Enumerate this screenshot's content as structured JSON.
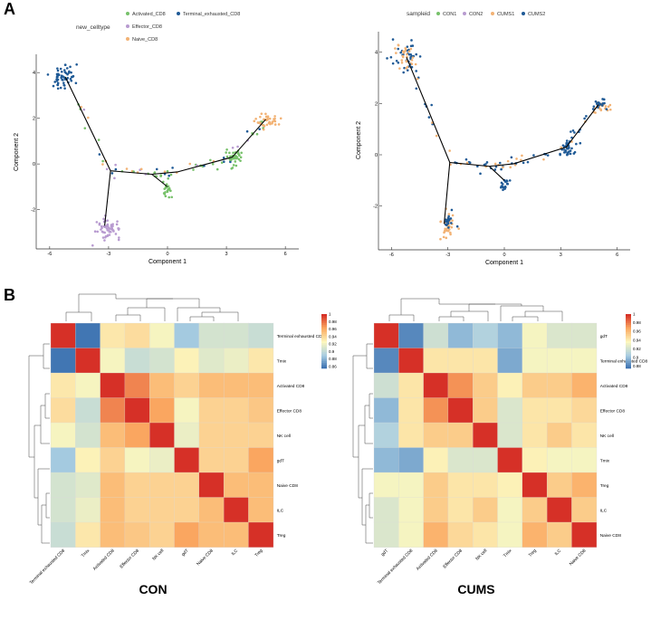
{
  "panelA": {
    "letter": "A",
    "left": {
      "legend_title": "new_celltype",
      "legend": [
        {
          "label": "Activated_CD8",
          "color": "#77c16a"
        },
        {
          "label": "Terminal_exhausted_CD8",
          "color": "#1f5a96"
        },
        {
          "label": "Effector_CD8",
          "color": "#b89bd0"
        },
        {
          "label": "Naive_CD8",
          "color": "#f2b274"
        }
      ],
      "xlabel": "Component 1",
      "ylabel": "Component 2",
      "xticks": [
        -6,
        -3,
        0,
        3,
        6
      ],
      "yticks": [
        -2,
        0,
        2,
        4
      ],
      "xlim": [
        -6.5,
        6.5
      ],
      "ylim": [
        -3.6,
        4.8
      ]
    },
    "right": {
      "legend_title": "sampleid",
      "legend": [
        {
          "label": "CON1",
          "color": "#77c16a"
        },
        {
          "label": "CON2",
          "color": "#b89bd0"
        },
        {
          "label": "CUMS1",
          "color": "#f2b274"
        },
        {
          "label": "CUMS2",
          "color": "#1f5a96"
        }
      ],
      "xlabel": "Component 1",
      "ylabel": "Component 2",
      "xticks": [
        -6,
        -3,
        0,
        3,
        6
      ],
      "yticks": [
        -2,
        0,
        2,
        4
      ],
      "xlim": [
        -6.5,
        6.5
      ],
      "ylim": [
        -3.6,
        4.8
      ]
    }
  },
  "panelB": {
    "letter": "B",
    "con": {
      "title": "CON",
      "labels": [
        "Terminal exhausted CD8",
        "Tmix",
        "Activated CD8",
        "Effector CD8",
        "NK cell",
        "gdT",
        "Naive CD8",
        "ILC",
        "Treg"
      ],
      "colorbar": {
        "ticks": [
          1,
          0.98,
          0.96,
          0.94,
          0.92,
          0.9,
          0.88,
          0.86
        ],
        "min": 0.855,
        "max": 1.0
      },
      "matrix": [
        [
          1.0,
          0.86,
          0.935,
          0.94,
          0.925,
          0.89,
          0.91,
          0.91,
          0.905
        ],
        [
          0.86,
          1.0,
          0.925,
          0.905,
          0.91,
          0.93,
          0.915,
          0.92,
          0.935
        ],
        [
          0.935,
          0.925,
          1.0,
          0.975,
          0.955,
          0.945,
          0.955,
          0.955,
          0.955
        ],
        [
          0.94,
          0.905,
          0.975,
          1.0,
          0.965,
          0.925,
          0.945,
          0.945,
          0.95
        ],
        [
          0.925,
          0.91,
          0.955,
          0.965,
          1.0,
          0.92,
          0.945,
          0.945,
          0.945
        ],
        [
          0.89,
          0.93,
          0.945,
          0.925,
          0.92,
          1.0,
          0.945,
          0.945,
          0.965
        ],
        [
          0.91,
          0.915,
          0.955,
          0.945,
          0.945,
          0.945,
          1.0,
          0.955,
          0.955
        ],
        [
          0.91,
          0.92,
          0.955,
          0.945,
          0.945,
          0.945,
          0.955,
          1.0,
          0.955
        ],
        [
          0.905,
          0.935,
          0.955,
          0.95,
          0.945,
          0.965,
          0.955,
          0.955,
          1.0
        ]
      ]
    },
    "cums": {
      "title": "CUMS",
      "labels": [
        "gdT",
        "Terminal exhausted CD8",
        "Activated CD8",
        "Effector CD8",
        "NK cell",
        "Tmix",
        "Treg",
        "ILC",
        "Naive CD8"
      ],
      "colorbar": {
        "ticks": [
          1,
          0.98,
          0.96,
          0.94,
          0.92,
          0.9,
          0.88
        ],
        "min": 0.875,
        "max": 1.0
      },
      "matrix": [
        [
          1.0,
          0.885,
          0.92,
          0.9,
          0.91,
          0.9,
          0.935,
          0.925,
          0.925
        ],
        [
          0.885,
          1.0,
          0.945,
          0.945,
          0.945,
          0.895,
          0.935,
          0.935,
          0.935
        ],
        [
          0.92,
          0.945,
          1.0,
          0.975,
          0.955,
          0.94,
          0.955,
          0.955,
          0.965
        ],
        [
          0.9,
          0.945,
          0.975,
          1.0,
          0.955,
          0.925,
          0.945,
          0.945,
          0.95
        ],
        [
          0.91,
          0.945,
          0.955,
          0.955,
          1.0,
          0.925,
          0.945,
          0.955,
          0.945
        ],
        [
          0.9,
          0.895,
          0.94,
          0.925,
          0.925,
          1.0,
          0.94,
          0.935,
          0.935
        ],
        [
          0.935,
          0.935,
          0.955,
          0.945,
          0.945,
          0.94,
          1.0,
          0.955,
          0.965
        ],
        [
          0.925,
          0.935,
          0.955,
          0.945,
          0.955,
          0.935,
          0.955,
          1.0,
          0.955
        ],
        [
          0.925,
          0.935,
          0.965,
          0.95,
          0.945,
          0.935,
          0.965,
          0.955,
          1.0
        ]
      ]
    }
  },
  "chart_data": [
    {
      "type": "scatter",
      "title": "",
      "xlabel": "Component 1",
      "ylabel": "Component 2",
      "xlim": [
        -6.5,
        6.5
      ],
      "ylim": [
        -3.6,
        4.8
      ],
      "legend_title": "new_celltype",
      "series": [
        {
          "name": "Terminal_exhausted_CD8",
          "center": [
            -5.3,
            3.8
          ],
          "spread": [
            0.35,
            0.3
          ],
          "n": 55,
          "color": "#1f5a96"
        },
        {
          "name": "Effector_CD8",
          "center": [
            -3.0,
            -2.8
          ],
          "spread": [
            0.3,
            0.22
          ],
          "n": 55,
          "color": "#b89bd0"
        },
        {
          "name": "Activated_CD8",
          "center": [
            0.0,
            -1.1
          ],
          "spread": [
            0.12,
            0.15
          ],
          "n": 20,
          "color": "#77c16a"
        },
        {
          "name": "Activated_CD8",
          "center": [
            3.4,
            0.25
          ],
          "spread": [
            0.2,
            0.2
          ],
          "n": 40,
          "color": "#77c16a"
        },
        {
          "name": "Naive_CD8",
          "center": [
            5.1,
            1.9
          ],
          "spread": [
            0.35,
            0.15
          ],
          "n": 40,
          "color": "#f2b274"
        }
      ],
      "trajectory": [
        [
          -5.2,
          3.8
        ],
        [
          -2.9,
          -0.3
        ],
        [
          -0.8,
          -0.45
        ],
        [
          0.5,
          -0.35
        ],
        [
          3.3,
          0.3
        ],
        [
          5.0,
          1.95
        ]
      ],
      "branches": [
        [
          [
            -2.9,
            -0.3
          ],
          [
            -3.2,
            -2.7
          ]
        ],
        [
          [
            -0.8,
            -0.45
          ],
          [
            0.0,
            -1.0
          ]
        ]
      ]
    },
    {
      "type": "scatter",
      "title": "",
      "xlabel": "Component 1",
      "ylabel": "Component 2",
      "xlim": [
        -6.5,
        6.5
      ],
      "ylim": [
        -3.6,
        4.8
      ],
      "legend_title": "sampleid",
      "series": [
        {
          "name": "CUMS2",
          "center": [
            -5.3,
            3.8
          ],
          "spread": [
            0.35,
            0.3
          ],
          "n": 35,
          "color": "#1f5a96"
        },
        {
          "name": "CUMS1",
          "center": [
            -5.3,
            3.8
          ],
          "spread": [
            0.35,
            0.35
          ],
          "n": 25,
          "color": "#f2b274"
        },
        {
          "name": "CUMS1",
          "center": [
            -3.0,
            -2.8
          ],
          "spread": [
            0.25,
            0.25
          ],
          "n": 30,
          "color": "#f2b274"
        },
        {
          "name": "CUMS2",
          "center": [
            -3.0,
            -2.7
          ],
          "spread": [
            0.2,
            0.2
          ],
          "n": 18,
          "color": "#1f5a96"
        },
        {
          "name": "CUMS2",
          "center": [
            0.0,
            -1.1
          ],
          "spread": [
            0.12,
            0.15
          ],
          "n": 20,
          "color": "#1f5a96"
        },
        {
          "name": "CUMS2",
          "center": [
            3.4,
            0.25
          ],
          "spread": [
            0.18,
            0.2
          ],
          "n": 35,
          "color": "#1f5a96"
        },
        {
          "name": "CUMS1",
          "center": [
            5.1,
            1.9
          ],
          "spread": [
            0.3,
            0.15
          ],
          "n": 22,
          "color": "#f2b274"
        },
        {
          "name": "CUMS2",
          "center": [
            5.1,
            1.9
          ],
          "spread": [
            0.3,
            0.15
          ],
          "n": 18,
          "color": "#1f5a96"
        }
      ],
      "trajectory": [
        [
          -5.2,
          3.8
        ],
        [
          -2.9,
          -0.3
        ],
        [
          -0.8,
          -0.45
        ],
        [
          0.5,
          -0.35
        ],
        [
          3.3,
          0.3
        ],
        [
          5.0,
          1.95
        ]
      ],
      "branches": [
        [
          [
            -2.9,
            -0.3
          ],
          [
            -3.2,
            -2.7
          ]
        ],
        [
          [
            -0.8,
            -0.45
          ],
          [
            0.0,
            -1.0
          ]
        ]
      ]
    },
    {
      "type": "heatmap",
      "title": "CON",
      "labels": [
        "Terminal exhausted CD8",
        "Tmix",
        "Activated CD8",
        "Effector CD8",
        "NK cell",
        "gdT",
        "Naive CD8",
        "ILC",
        "Treg"
      ]
    },
    {
      "type": "heatmap",
      "title": "CUMS",
      "labels": [
        "gdT",
        "Terminal exhausted CD8",
        "Activated CD8",
        "Effector CD8",
        "NK cell",
        "Tmix",
        "Treg",
        "ILC",
        "Naive CD8"
      ]
    }
  ]
}
